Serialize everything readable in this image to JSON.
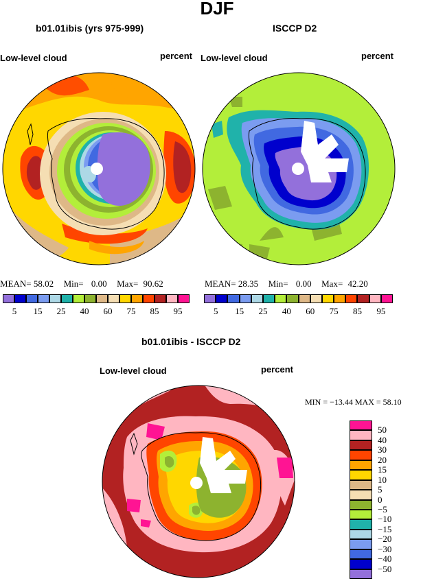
{
  "page_title": "DJF",
  "panels": {
    "model": {
      "title": "b01.01ibis (yrs 975-999)",
      "left_label": "Low-level cloud",
      "right_label": "percent",
      "stats": {
        "mean_label": "MEAN=",
        "mean": "58.02",
        "min_label": "Min=",
        "min": "0.00",
        "max_label": "Max=",
        "max": "90.62"
      }
    },
    "obs": {
      "title": "ISCCP D2",
      "left_label": "Low-level cloud",
      "right_label": "percent",
      "stats": {
        "mean_label": "MEAN=",
        "mean": "28.35",
        "min_label": "Min=",
        "min": "0.00",
        "max_label": "Max=",
        "max": "42.20"
      }
    },
    "diff": {
      "title": "b01.01ibis - ISCCP D2",
      "left_label": "Low-level cloud",
      "right_label": "percent",
      "minmax": "MIN = −13.44  MAX =  58.10"
    }
  },
  "colorbar_abs": {
    "colors": [
      "#9370db",
      "#0000cd",
      "#4169e1",
      "#7b9cf0",
      "#add8e6",
      "#20b2aa",
      "#b3ee3a",
      "#8db32f",
      "#deb887",
      "#f5deb3",
      "#ffd700",
      "#ffa500",
      "#ff4500",
      "#b22222",
      "#ffb6c1",
      "#ff1493"
    ],
    "tick_labels": [
      "5",
      "15",
      "25",
      "40",
      "60",
      "75",
      "85",
      "95"
    ]
  },
  "colorbar_diff": {
    "colors": [
      "#9370db",
      "#0000cd",
      "#4169e1",
      "#7b9cf0",
      "#add8e6",
      "#20b2aa",
      "#b3ee3a",
      "#8db32f",
      "#f5deb3",
      "#deb887",
      "#ffd700",
      "#ffa500",
      "#ff4500",
      "#b22222",
      "#ffb6c1",
      "#ff1493"
    ],
    "tick_labels": [
      "50",
      "40",
      "30",
      "20",
      "15",
      "10",
      "5",
      "0",
      "−5",
      "−10",
      "−15",
      "−20",
      "−30",
      "−40",
      "−50"
    ]
  }
}
